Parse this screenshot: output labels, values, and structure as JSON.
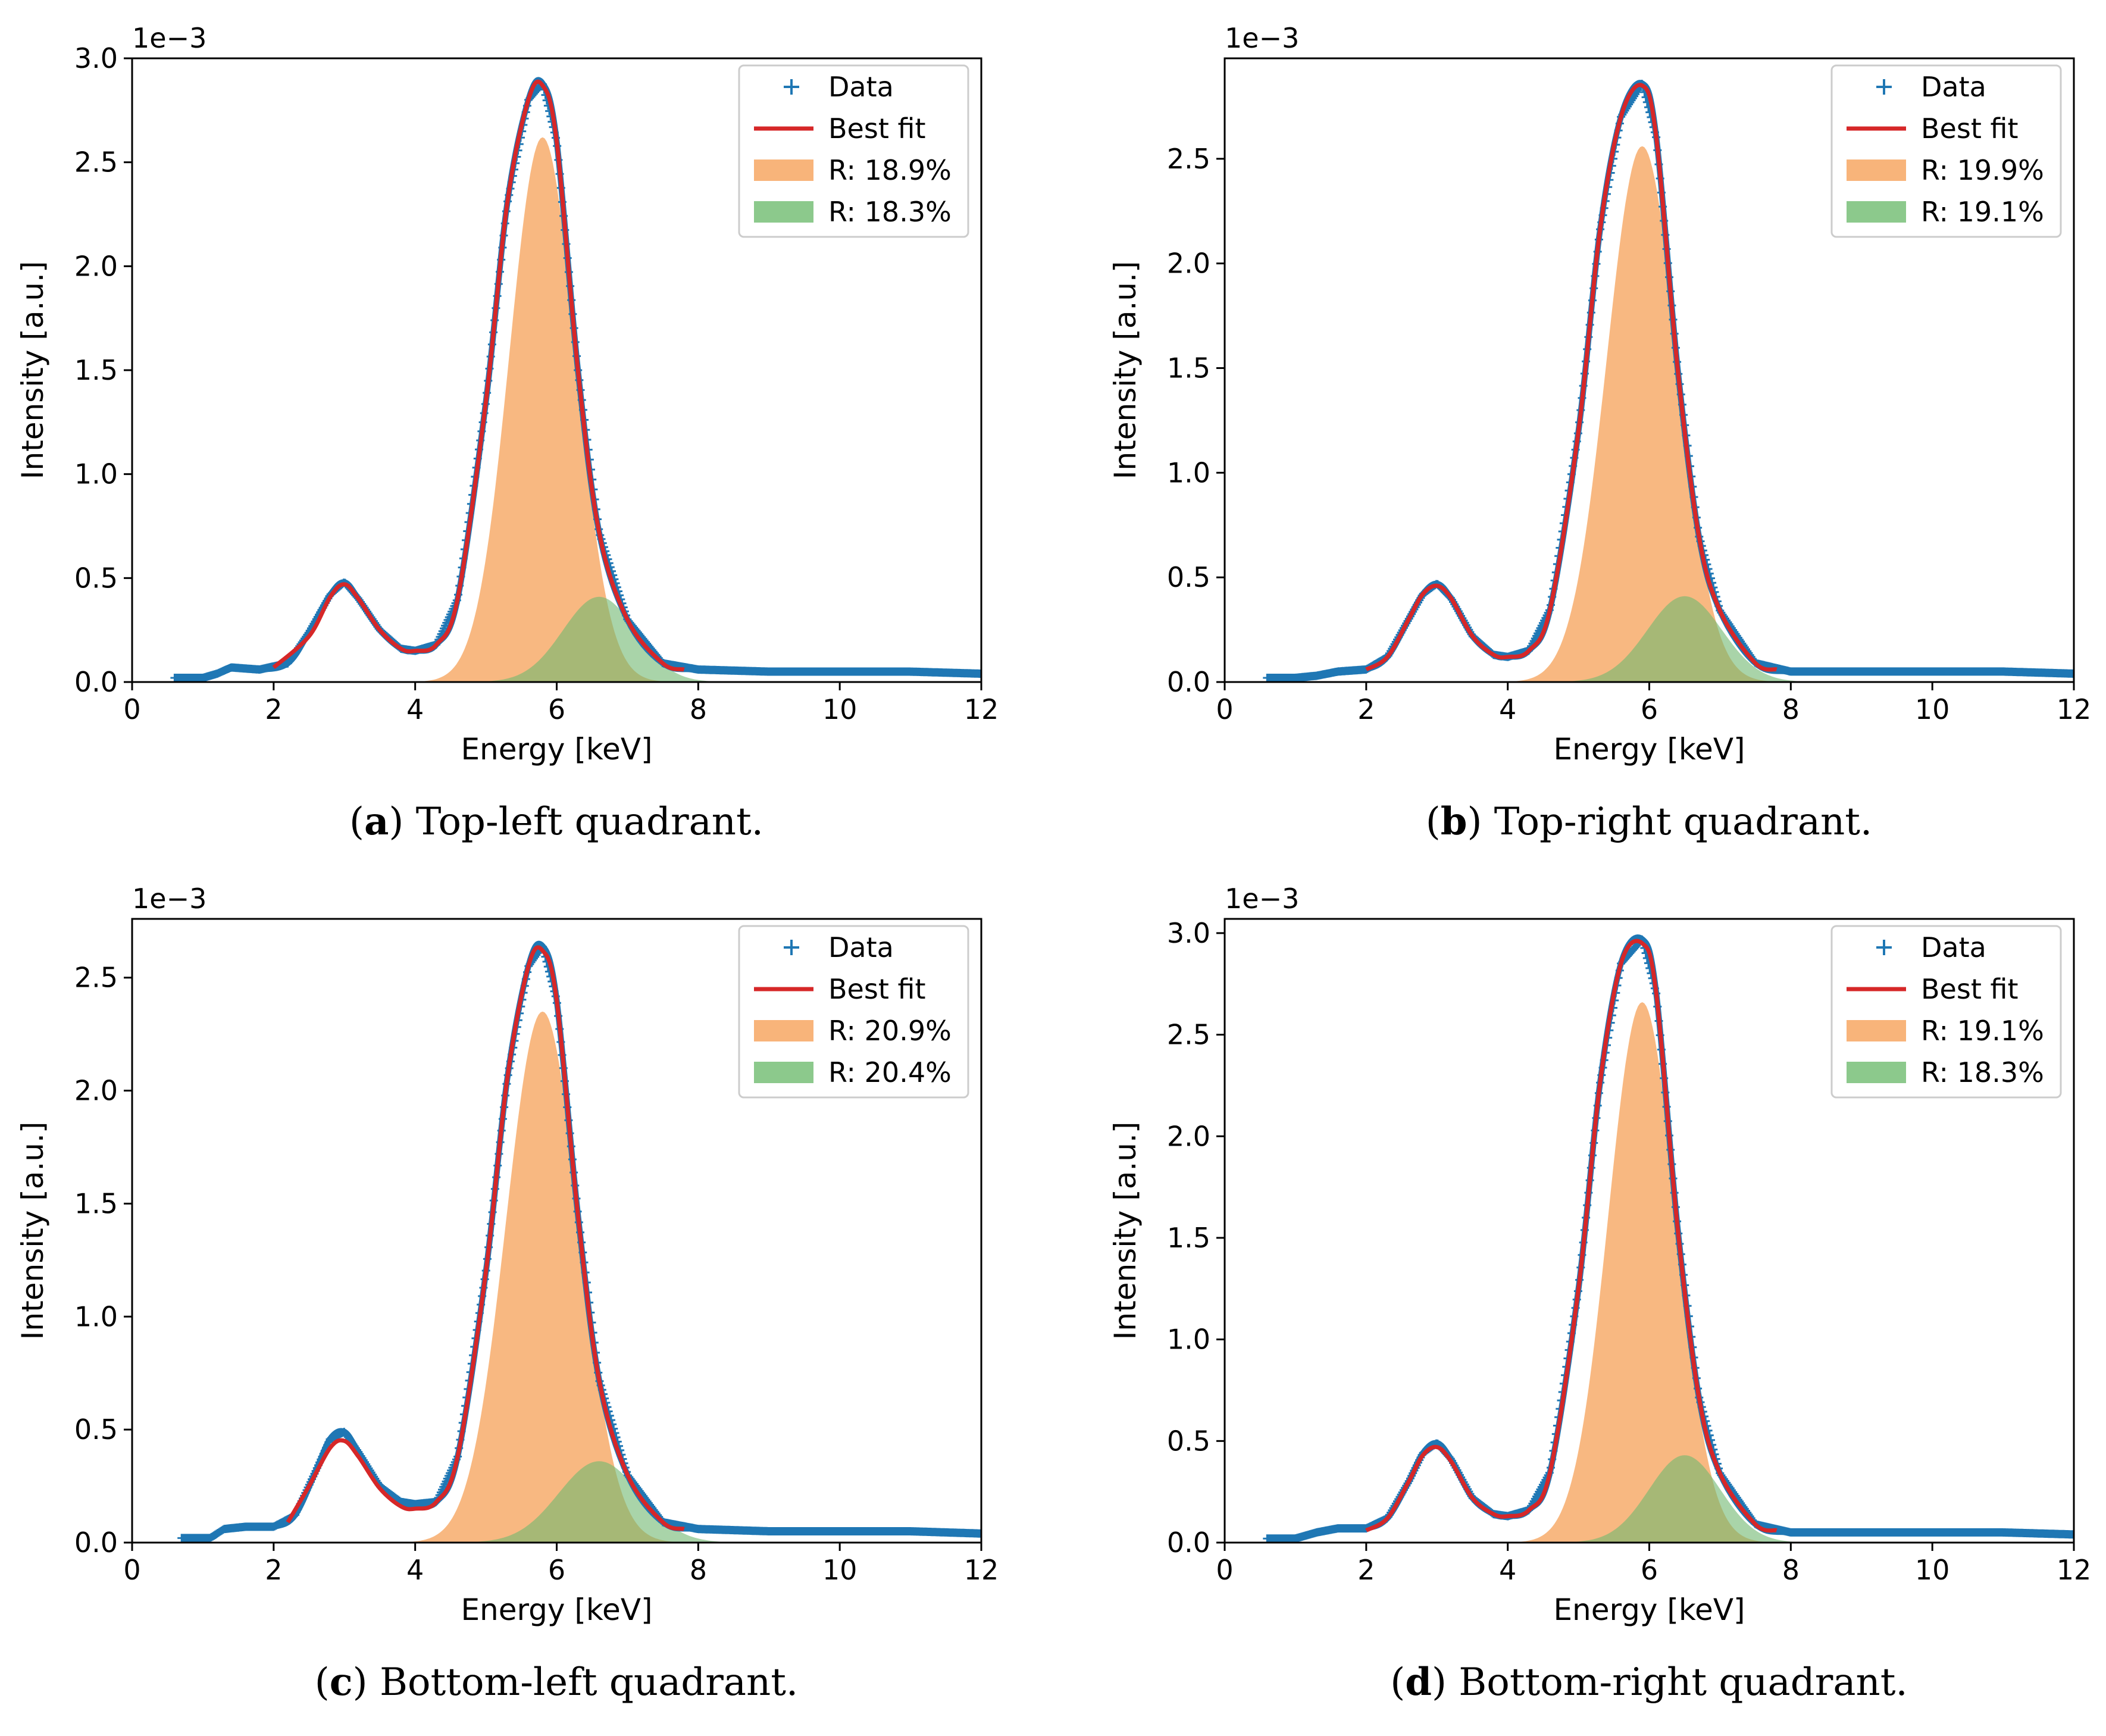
{
  "figure": {
    "colors": {
      "data": "#1f77b4",
      "fit": "#d62728",
      "comp1": "#f8b47a",
      "comp2": "#8cc98c"
    }
  },
  "chart_data": [
    {
      "type": "line",
      "caption_letter": "a",
      "caption_text": ") Top-left quadrant.",
      "xlabel": "Energy [keV]",
      "ylabel": "Intensity [a.u.]",
      "offset_text": "1e−3",
      "xlim": [
        0,
        12
      ],
      "ylim": [
        0,
        3.0
      ],
      "xticks": [
        0,
        2,
        4,
        6,
        8,
        10,
        12
      ],
      "yticks": [
        "0.0",
        "0.5",
        "1.0",
        "1.5",
        "2.0",
        "2.5",
        "3.0"
      ],
      "legend": [
        "Data",
        "Best fit",
        "R: 18.9%",
        "R: 18.3%"
      ],
      "legend_loc": "upper right",
      "series": [
        {
          "name": "Data",
          "x": [
            0.6,
            1.0,
            1.2,
            1.4,
            1.8,
            2.2,
            2.5,
            2.8,
            3.0,
            3.2,
            3.5,
            3.8,
            4.0,
            4.3,
            4.6,
            5.0,
            5.3,
            5.6,
            5.8,
            6.0,
            6.3,
            6.6,
            7.0,
            7.5,
            8.0,
            9.0,
            10.0,
            11.0,
            12.0
          ],
          "values": [
            0.02,
            0.02,
            0.04,
            0.07,
            0.06,
            0.09,
            0.24,
            0.42,
            0.48,
            0.4,
            0.25,
            0.16,
            0.15,
            0.18,
            0.4,
            1.35,
            2.3,
            2.8,
            2.88,
            2.6,
            1.5,
            0.72,
            0.3,
            0.09,
            0.06,
            0.05,
            0.05,
            0.05,
            0.04
          ]
        },
        {
          "name": "Best fit",
          "x": [
            2.0,
            2.5,
            2.8,
            3.0,
            3.2,
            3.5,
            3.8,
            4.0,
            4.3,
            4.6,
            5.0,
            5.3,
            5.6,
            5.8,
            6.0,
            6.3,
            6.6,
            7.0,
            7.5,
            7.8
          ],
          "values": [
            0.07,
            0.22,
            0.41,
            0.47,
            0.4,
            0.25,
            0.16,
            0.15,
            0.18,
            0.4,
            1.35,
            2.3,
            2.8,
            2.87,
            2.6,
            1.5,
            0.72,
            0.3,
            0.09,
            0.06
          ]
        },
        {
          "name": "R: 18.9%",
          "center": 5.8,
          "amplitude": 2.62,
          "resolution_percent": 18.9
        },
        {
          "name": "R: 18.3%",
          "center": 6.6,
          "amplitude": 0.41,
          "resolution_percent": 18.3
        }
      ]
    },
    {
      "type": "line",
      "caption_letter": "b",
      "caption_text": ") Top-right quadrant.",
      "xlabel": "Energy [keV]",
      "ylabel": "Intensity [a.u.]",
      "offset_text": "1e−3",
      "xlim": [
        0,
        12
      ],
      "ylim": [
        0,
        2.98
      ],
      "xticks": [
        0,
        2,
        4,
        6,
        8,
        10,
        12
      ],
      "yticks": [
        "0.0",
        "0.5",
        "1.0",
        "1.5",
        "2.0",
        "2.5"
      ],
      "legend": [
        "Data",
        "Best fit",
        "R: 19.9%",
        "R: 19.1%"
      ],
      "legend_loc": "upper right",
      "series": [
        {
          "name": "Data",
          "x": [
            0.6,
            1.0,
            1.3,
            1.6,
            2.0,
            2.3,
            2.6,
            2.8,
            3.0,
            3.2,
            3.5,
            3.8,
            4.0,
            4.3,
            4.6,
            5.0,
            5.3,
            5.6,
            5.9,
            6.1,
            6.4,
            6.7,
            7.0,
            7.5,
            8.0,
            9.0,
            10.0,
            11.0,
            12.0
          ],
          "values": [
            0.02,
            0.02,
            0.03,
            0.05,
            0.06,
            0.12,
            0.3,
            0.42,
            0.47,
            0.4,
            0.22,
            0.13,
            0.12,
            0.15,
            0.35,
            1.2,
            2.15,
            2.7,
            2.86,
            2.6,
            1.5,
            0.7,
            0.34,
            0.09,
            0.05,
            0.05,
            0.05,
            0.05,
            0.04
          ]
        },
        {
          "name": "Best fit",
          "x": [
            2.0,
            2.3,
            2.6,
            2.8,
            3.0,
            3.2,
            3.5,
            3.8,
            4.0,
            4.3,
            4.6,
            5.0,
            5.3,
            5.6,
            5.9,
            6.1,
            6.4,
            6.7,
            7.0,
            7.5,
            7.8
          ],
          "values": [
            0.06,
            0.12,
            0.3,
            0.42,
            0.46,
            0.4,
            0.22,
            0.13,
            0.12,
            0.15,
            0.35,
            1.2,
            2.15,
            2.7,
            2.85,
            2.6,
            1.5,
            0.7,
            0.34,
            0.09,
            0.06
          ]
        },
        {
          "name": "R: 19.9%",
          "center": 5.9,
          "amplitude": 2.56,
          "resolution_percent": 19.9
        },
        {
          "name": "R: 19.1%",
          "center": 6.5,
          "amplitude": 0.41,
          "resolution_percent": 19.1
        }
      ]
    },
    {
      "type": "line",
      "caption_letter": "c",
      "caption_text": ") Bottom-left quadrant.",
      "xlabel": "Energy [keV]",
      "ylabel": "Intensity [a.u.]",
      "offset_text": "1e−3",
      "xlim": [
        0,
        12
      ],
      "ylim": [
        0,
        2.76
      ],
      "xticks": [
        0,
        2,
        4,
        6,
        8,
        10,
        12
      ],
      "yticks": [
        "0.0",
        "0.5",
        "1.0",
        "1.5",
        "2.0",
        "2.5"
      ],
      "legend": [
        "Data",
        "Best fit",
        "R: 20.9%",
        "R: 20.4%"
      ],
      "legend_loc": "upper right",
      "series": [
        {
          "name": "Data",
          "x": [
            0.7,
            1.1,
            1.3,
            1.6,
            2.0,
            2.3,
            2.6,
            2.8,
            3.0,
            3.2,
            3.5,
            3.8,
            4.0,
            4.3,
            4.6,
            5.0,
            5.3,
            5.6,
            5.8,
            6.0,
            6.3,
            6.6,
            7.0,
            7.5,
            8.0,
            9.0,
            10.0,
            11.0,
            12.0
          ],
          "values": [
            0.02,
            0.02,
            0.06,
            0.07,
            0.07,
            0.12,
            0.32,
            0.46,
            0.49,
            0.4,
            0.25,
            0.18,
            0.17,
            0.18,
            0.38,
            1.2,
            2.05,
            2.55,
            2.64,
            2.4,
            1.45,
            0.72,
            0.3,
            0.09,
            0.06,
            0.05,
            0.05,
            0.05,
            0.04
          ]
        },
        {
          "name": "Best fit",
          "x": [
            2.2,
            2.5,
            2.8,
            3.0,
            3.2,
            3.5,
            3.8,
            4.0,
            4.3,
            4.6,
            5.0,
            5.3,
            5.6,
            5.8,
            6.0,
            6.3,
            6.6,
            7.0,
            7.5,
            7.8
          ],
          "values": [
            0.09,
            0.25,
            0.42,
            0.45,
            0.38,
            0.24,
            0.16,
            0.15,
            0.18,
            0.38,
            1.2,
            2.05,
            2.55,
            2.62,
            2.4,
            1.45,
            0.72,
            0.3,
            0.09,
            0.06
          ]
        },
        {
          "name": "R: 20.9%",
          "center": 5.8,
          "amplitude": 2.35,
          "resolution_percent": 20.9
        },
        {
          "name": "R: 20.4%",
          "center": 6.6,
          "amplitude": 0.36,
          "resolution_percent": 20.4
        }
      ]
    },
    {
      "type": "line",
      "caption_letter": "d",
      "caption_text": ") Bottom-right quadrant.",
      "xlabel": "Energy [keV]",
      "ylabel": "Intensity [a.u.]",
      "offset_text": "1e−3",
      "xlim": [
        0,
        12
      ],
      "ylim": [
        0,
        3.07
      ],
      "xticks": [
        0,
        2,
        4,
        6,
        8,
        10,
        12
      ],
      "yticks": [
        "0.0",
        "0.5",
        "1.0",
        "1.5",
        "2.0",
        "2.5",
        "3.0"
      ],
      "legend": [
        "Data",
        "Best fit",
        "R: 19.1%",
        "R: 18.3%"
      ],
      "legend_loc": "upper right",
      "series": [
        {
          "name": "Data",
          "x": [
            0.6,
            1.0,
            1.3,
            1.6,
            2.0,
            2.3,
            2.6,
            2.8,
            3.0,
            3.2,
            3.5,
            3.8,
            4.0,
            4.3,
            4.6,
            5.0,
            5.3,
            5.6,
            5.9,
            6.1,
            6.4,
            6.7,
            7.0,
            7.5,
            8.0,
            9.0,
            10.0,
            11.0,
            12.0
          ],
          "values": [
            0.02,
            0.02,
            0.05,
            0.07,
            0.07,
            0.12,
            0.3,
            0.44,
            0.49,
            0.41,
            0.22,
            0.14,
            0.13,
            0.16,
            0.35,
            1.25,
            2.25,
            2.85,
            2.97,
            2.7,
            1.55,
            0.72,
            0.34,
            0.09,
            0.05,
            0.05,
            0.05,
            0.05,
            0.04
          ]
        },
        {
          "name": "Best fit",
          "x": [
            2.0,
            2.3,
            2.6,
            2.8,
            3.0,
            3.2,
            3.5,
            3.8,
            4.0,
            4.3,
            4.6,
            5.0,
            5.3,
            5.6,
            5.9,
            6.1,
            6.4,
            6.7,
            7.0,
            7.5,
            7.8
          ],
          "values": [
            0.06,
            0.12,
            0.3,
            0.43,
            0.47,
            0.4,
            0.22,
            0.14,
            0.13,
            0.16,
            0.35,
            1.25,
            2.25,
            2.85,
            2.95,
            2.7,
            1.55,
            0.72,
            0.34,
            0.09,
            0.06
          ]
        },
        {
          "name": "R: 19.1%",
          "center": 5.9,
          "amplitude": 2.66,
          "resolution_percent": 19.1
        },
        {
          "name": "R: 18.3%",
          "center": 6.5,
          "amplitude": 0.43,
          "resolution_percent": 18.3
        }
      ]
    }
  ]
}
